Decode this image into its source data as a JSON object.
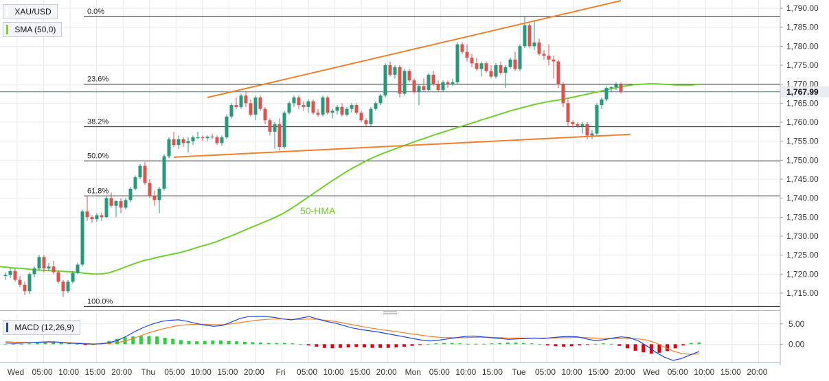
{
  "legend": {
    "symbol": "XAU/USD",
    "sma_label": "SMA (50,0)",
    "macd_label": "MACD (12,26,9)",
    "sma_color": "#7ed321",
    "macd_color": "#1b3fd8"
  },
  "colors": {
    "up": "#26997b",
    "down": "#d9534f",
    "sma": "#6ed02b",
    "macd_line": "#1f45e0",
    "signal_line": "#f07f2a",
    "hist_pos": "#2ecc40",
    "hist_neg": "#e3000f",
    "trendline": "#f07f2a",
    "price_line": "#4a6fa5",
    "price_tag_bg": "#e9edf3"
  },
  "hma_label": "50-HMA",
  "current_price": "1,767.99",
  "chart_data": [
    {
      "type": "candlestick",
      "x_axis_labels": [
        "Wed",
        "05:00",
        "10:00",
        "15:00",
        "20:00",
        "Thu",
        "05:00",
        "10:00",
        "15:00",
        "20:00",
        "Fri",
        "05:00",
        "10:00",
        "15:00",
        "20:00",
        "Mon",
        "05:00",
        "10:00",
        "15:00",
        "Tue",
        "05:00",
        "10:00",
        "15:00",
        "20:00",
        "Wed",
        "05:00",
        "10:00",
        "15:00",
        "20:00"
      ],
      "y_ticks": [
        "1,790.00",
        "1,785.00",
        "1,780.00",
        "1,775.00",
        "1,770.00",
        "1,765.00",
        "1,760.00",
        "1,755.00",
        "1,750.00",
        "1,745.00",
        "1,740.00",
        "1,735.00",
        "1,730.00",
        "1,725.00",
        "1,720.00",
        "1,715.00"
      ],
      "ylim": [
        1711,
        1792
      ],
      "ohlc": [
        [
          1719.5,
          1720.5,
          1718.5,
          1719.8
        ],
        [
          1719.8,
          1721.5,
          1719.0,
          1720.8
        ],
        [
          1720.8,
          1721.5,
          1718.0,
          1718.5
        ],
        [
          1718.5,
          1719.5,
          1716.5,
          1717.2
        ],
        [
          1717.2,
          1718.0,
          1714.5,
          1715.5
        ],
        [
          1715.5,
          1720.5,
          1714.8,
          1720.0
        ],
        [
          1720.0,
          1722.0,
          1719.2,
          1721.5
        ],
        [
          1721.5,
          1725.0,
          1721.0,
          1724.5
        ],
        [
          1724.5,
          1725.0,
          1720.5,
          1721.5
        ],
        [
          1721.5,
          1723.0,
          1720.8,
          1722.0
        ],
        [
          1722.0,
          1723.5,
          1720.0,
          1720.5
        ],
        [
          1720.5,
          1721.0,
          1717.5,
          1718.0
        ],
        [
          1718.0,
          1718.5,
          1714.0,
          1715.5
        ],
        [
          1715.5,
          1718.5,
          1715.0,
          1718.0
        ],
        [
          1718.0,
          1720.8,
          1717.5,
          1720.3
        ],
        [
          1720.3,
          1723.0,
          1720.0,
          1722.5
        ],
        [
          1722.5,
          1737.0,
          1722.0,
          1736.5
        ],
        [
          1736.5,
          1740.5,
          1734.0,
          1735.0
        ],
        [
          1735.0,
          1735.5,
          1733.5,
          1734.5
        ],
        [
          1734.5,
          1736.0,
          1733.8,
          1735.5
        ],
        [
          1735.5,
          1736.2,
          1734.0,
          1735.0
        ],
        [
          1735.0,
          1740.5,
          1734.8,
          1740.0
        ],
        [
          1740.0,
          1741.5,
          1737.5,
          1738.0
        ],
        [
          1738.0,
          1739.5,
          1735.0,
          1739.2
        ],
        [
          1739.2,
          1740.0,
          1736.0,
          1737.5
        ],
        [
          1737.5,
          1740.0,
          1737.0,
          1739.5
        ],
        [
          1739.5,
          1743.0,
          1739.0,
          1742.5
        ],
        [
          1742.5,
          1746.0,
          1742.0,
          1745.5
        ],
        [
          1745.5,
          1749.0,
          1745.0,
          1748.5
        ],
        [
          1748.5,
          1749.5,
          1743.5,
          1744.0
        ],
        [
          1744.0,
          1745.0,
          1740.0,
          1740.5
        ],
        [
          1740.5,
          1742.0,
          1738.0,
          1739.5
        ],
        [
          1739.5,
          1743.0,
          1736.0,
          1742.5
        ],
        [
          1742.5,
          1751.5,
          1742.0,
          1751.0
        ],
        [
          1751.0,
          1756.0,
          1750.5,
          1755.5
        ],
        [
          1755.5,
          1757.5,
          1753.5,
          1754.0
        ],
        [
          1754.0,
          1756.5,
          1753.0,
          1755.5
        ],
        [
          1755.5,
          1756.0,
          1753.5,
          1754.5
        ],
        [
          1754.5,
          1756.0,
          1752.0,
          1755.0
        ],
        [
          1755.0,
          1756.5,
          1754.0,
          1756.0
        ],
        [
          1756.0,
          1757.5,
          1755.5,
          1756.0
        ],
        [
          1756.0,
          1756.5,
          1755.0,
          1755.8
        ],
        [
          1755.8,
          1756.5,
          1755.0,
          1756.2
        ],
        [
          1756.2,
          1757.0,
          1755.5,
          1756.0
        ],
        [
          1756.0,
          1756.5,
          1754.0,
          1754.5
        ],
        [
          1754.5,
          1756.5,
          1753.8,
          1756.0
        ],
        [
          1756.0,
          1762.0,
          1755.5,
          1761.5
        ],
        [
          1761.5,
          1765.0,
          1761.0,
          1764.5
        ],
        [
          1764.5,
          1766.5,
          1763.5,
          1764.0
        ],
        [
          1764.0,
          1767.5,
          1763.5,
          1767.0
        ],
        [
          1767.0,
          1768.0,
          1764.0,
          1765.0
        ],
        [
          1765.0,
          1766.0,
          1761.5,
          1762.0
        ],
        [
          1762.0,
          1767.0,
          1760.5,
          1766.5
        ],
        [
          1766.5,
          1767.0,
          1763.0,
          1763.5
        ],
        [
          1763.5,
          1764.0,
          1759.5,
          1760.5
        ],
        [
          1760.5,
          1761.0,
          1756.5,
          1757.5
        ],
        [
          1757.5,
          1760.0,
          1753.0,
          1759.5
        ],
        [
          1759.5,
          1761.0,
          1752.5,
          1753.5
        ],
        [
          1753.5,
          1763.0,
          1753.0,
          1762.5
        ],
        [
          1762.5,
          1765.5,
          1762.0,
          1765.0
        ],
        [
          1765.0,
          1767.0,
          1764.0,
          1766.5
        ],
        [
          1766.5,
          1767.0,
          1763.5,
          1764.5
        ],
        [
          1764.5,
          1765.5,
          1763.0,
          1764.0
        ],
        [
          1764.0,
          1766.0,
          1762.5,
          1765.5
        ],
        [
          1765.5,
          1766.0,
          1762.0,
          1762.5
        ],
        [
          1762.5,
          1763.5,
          1761.5,
          1762.0
        ],
        [
          1762.0,
          1767.0,
          1761.5,
          1766.5
        ],
        [
          1766.5,
          1767.0,
          1762.0,
          1762.5
        ],
        [
          1762.5,
          1763.5,
          1761.0,
          1763.0
        ],
        [
          1763.0,
          1764.5,
          1762.0,
          1764.0
        ],
        [
          1764.0,
          1765.0,
          1761.5,
          1762.0
        ],
        [
          1762.0,
          1764.0,
          1761.5,
          1763.5
        ],
        [
          1763.5,
          1765.0,
          1762.5,
          1764.5
        ],
        [
          1764.5,
          1765.0,
          1762.0,
          1762.5
        ],
        [
          1762.5,
          1763.0,
          1760.0,
          1760.5
        ],
        [
          1760.5,
          1761.0,
          1759.0,
          1759.5
        ],
        [
          1759.5,
          1764.0,
          1759.0,
          1763.5
        ],
        [
          1763.5,
          1765.5,
          1763.0,
          1765.0
        ],
        [
          1765.0,
          1767.5,
          1764.5,
          1767.0
        ],
        [
          1767.0,
          1775.5,
          1766.5,
          1775.0
        ],
        [
          1775.0,
          1776.0,
          1772.0,
          1772.5
        ],
        [
          1772.5,
          1775.0,
          1771.5,
          1774.5
        ],
        [
          1774.5,
          1775.0,
          1766.5,
          1767.5
        ],
        [
          1767.5,
          1774.0,
          1767.0,
          1773.5
        ],
        [
          1773.5,
          1774.0,
          1770.5,
          1771.0
        ],
        [
          1771.0,
          1771.5,
          1767.5,
          1768.0
        ],
        [
          1768.0,
          1770.0,
          1764.5,
          1769.5
        ],
        [
          1769.5,
          1771.5,
          1768.0,
          1768.5
        ],
        [
          1768.5,
          1773.0,
          1768.0,
          1772.5
        ],
        [
          1772.5,
          1773.5,
          1769.5,
          1770.0
        ],
        [
          1770.0,
          1771.0,
          1768.0,
          1768.5
        ],
        [
          1768.5,
          1771.0,
          1768.0,
          1770.5
        ],
        [
          1770.5,
          1771.0,
          1769.0,
          1770.0
        ],
        [
          1770.0,
          1771.5,
          1769.5,
          1770.5
        ],
        [
          1770.5,
          1781.0,
          1770.0,
          1780.5
        ],
        [
          1780.5,
          1781.0,
          1778.0,
          1778.5
        ],
        [
          1778.5,
          1780.5,
          1776.0,
          1777.0
        ],
        [
          1777.0,
          1778.0,
          1774.5,
          1775.5
        ],
        [
          1775.5,
          1777.0,
          1773.5,
          1774.0
        ],
        [
          1774.0,
          1776.0,
          1772.0,
          1775.5
        ],
        [
          1775.5,
          1776.0,
          1773.0,
          1773.5
        ],
        [
          1773.5,
          1775.0,
          1771.5,
          1772.0
        ],
        [
          1772.0,
          1775.5,
          1771.5,
          1775.0
        ],
        [
          1775.0,
          1776.0,
          1772.5,
          1773.0
        ],
        [
          1773.0,
          1775.0,
          1769.0,
          1774.5
        ],
        [
          1774.5,
          1777.0,
          1774.0,
          1776.5
        ],
        [
          1776.5,
          1778.5,
          1773.5,
          1774.0
        ],
        [
          1774.0,
          1780.5,
          1773.5,
          1780.0
        ],
        [
          1780.0,
          1788.0,
          1779.5,
          1785.5
        ],
        [
          1785.5,
          1786.0,
          1779.5,
          1780.0
        ],
        [
          1780.0,
          1786.5,
          1779.0,
          1781.0
        ],
        [
          1781.0,
          1782.0,
          1777.5,
          1778.0
        ],
        [
          1778.0,
          1779.0,
          1776.5,
          1777.5
        ],
        [
          1777.5,
          1780.5,
          1775.0,
          1776.5
        ],
        [
          1776.5,
          1777.5,
          1771.5,
          1776.0
        ],
        [
          1776.0,
          1776.5,
          1769.0,
          1770.0
        ],
        [
          1770.0,
          1770.5,
          1764.0,
          1765.0
        ],
        [
          1765.0,
          1766.0,
          1759.0,
          1760.0
        ],
        [
          1760.0,
          1760.5,
          1758.5,
          1759.5
        ],
        [
          1759.5,
          1760.0,
          1758.5,
          1759.0
        ],
        [
          1759.0,
          1760.0,
          1757.0,
          1759.5
        ],
        [
          1759.5,
          1760.0,
          1755.5,
          1756.5
        ],
        [
          1756.5,
          1758.0,
          1755.5,
          1757.0
        ],
        [
          1757.0,
          1765.0,
          1756.5,
          1764.5
        ],
        [
          1764.5,
          1766.5,
          1763.5,
          1766.0
        ],
        [
          1766.0,
          1769.5,
          1765.5,
          1769.0
        ],
        [
          1769.0,
          1769.5,
          1768.0,
          1769.2
        ],
        [
          1769.2,
          1770.5,
          1768.5,
          1770.0
        ],
        [
          1770.0,
          1770.5,
          1767.5,
          1768.0
        ]
      ],
      "sma_50": [
        1722.0,
        1721.8,
        1721.6,
        1721.5,
        1721.3,
        1721.1,
        1721.0,
        1720.9,
        1720.8,
        1720.7,
        1720.6,
        1720.4,
        1720.2,
        1720.0,
        1720.0,
        1720.3,
        1720.9,
        1721.6,
        1722.3,
        1723.0,
        1723.6,
        1724.0,
        1724.5,
        1724.9,
        1725.3,
        1725.7,
        1726.2,
        1726.8,
        1727.4,
        1727.9,
        1728.5,
        1729.3,
        1730.0,
        1730.8,
        1731.6,
        1732.4,
        1733.2,
        1734.0,
        1734.8,
        1735.7,
        1736.8,
        1738.0,
        1739.3,
        1740.6,
        1741.9,
        1743.2,
        1744.5,
        1745.7,
        1746.9,
        1748.0,
        1749.0,
        1750.0,
        1750.9,
        1751.7,
        1752.4,
        1753.1,
        1753.8,
        1754.5,
        1755.2,
        1755.8,
        1756.5,
        1757.1,
        1757.7,
        1758.3,
        1758.9,
        1759.5,
        1760.1,
        1760.7,
        1761.3,
        1761.9,
        1762.5,
        1763.1,
        1763.6,
        1764.1,
        1764.6,
        1765.0,
        1765.4,
        1765.7,
        1766.0,
        1766.4,
        1766.8,
        1767.2,
        1767.6,
        1768.0,
        1768.5,
        1768.9,
        1769.3,
        1769.6,
        1769.9,
        1770.0,
        1770.1,
        1770.1,
        1770.0,
        1769.9,
        1769.8,
        1769.8,
        1769.8,
        1770.0
      ],
      "fibonacci": [
        {
          "label": "0.0%",
          "value": 1787.8
        },
        {
          "label": "23.6%",
          "value": 1770.0
        },
        {
          "label": "38.2%",
          "value": 1758.8
        },
        {
          "label": "50.0%",
          "value": 1749.8
        },
        {
          "label": "61.8%",
          "value": 1740.6
        },
        {
          "label": "100.0%",
          "value": 1711.5
        }
      ],
      "trendlines": [
        {
          "from": [
            42,
            1766.5
          ],
          "to": [
            128,
            1792.0
          ]
        },
        {
          "from": [
            35,
            1750.8
          ],
          "to": [
            130,
            1756.8
          ]
        }
      ],
      "current_price": 1767.99
    },
    {
      "type": "macd",
      "params": "12,26,9",
      "y_ticks": [
        "5.00",
        "0.00"
      ],
      "ylim": [
        -4.5,
        7.5
      ],
      "macd": [
        0.3,
        0.2,
        0.3,
        0.4,
        0.5,
        0.6,
        0.5,
        0.3,
        0.2,
        0.1,
        0.0,
        0.1,
        0.4,
        1.0,
        2.0,
        3.2,
        4.2,
        5.0,
        5.6,
        5.9,
        6.0,
        5.6,
        5.1,
        4.7,
        4.4,
        4.6,
        5.4,
        6.3,
        6.8,
        6.9,
        6.8,
        6.6,
        6.2,
        6.0,
        6.4,
        6.8,
        6.2,
        5.6,
        5.2,
        4.6,
        4.0,
        3.6,
        3.3,
        3.0,
        2.6,
        2.2,
        1.8,
        1.4,
        1.0,
        0.8,
        1.0,
        1.3,
        1.6,
        1.9,
        2.0,
        1.8,
        1.6,
        1.4,
        1.2,
        1.3,
        1.4,
        1.5,
        1.4,
        1.6,
        1.8,
        1.9,
        1.8,
        1.3,
        0.9,
        1.1,
        1.5,
        1.8,
        1.6,
        0.8,
        -0.5,
        -2.0,
        -3.2,
        -4.0,
        -3.5,
        -2.6,
        -1.8
      ],
      "signal": [
        0.6,
        0.5,
        0.4,
        0.4,
        0.4,
        0.5,
        0.5,
        0.4,
        0.3,
        0.2,
        0.1,
        0.1,
        0.2,
        0.4,
        0.9,
        1.6,
        2.4,
        3.1,
        3.7,
        4.2,
        4.6,
        4.8,
        4.9,
        4.9,
        4.8,
        4.8,
        5.0,
        5.3,
        5.6,
        5.9,
        6.1,
        6.2,
        6.2,
        6.1,
        6.1,
        6.2,
        6.1,
        5.9,
        5.6,
        5.2,
        4.8,
        4.4,
        4.0,
        3.7,
        3.4,
        3.1,
        2.8,
        2.5,
        2.2,
        1.9,
        1.7,
        1.6,
        1.6,
        1.6,
        1.7,
        1.7,
        1.7,
        1.6,
        1.5,
        1.5,
        1.5,
        1.5,
        1.5,
        1.5,
        1.6,
        1.6,
        1.7,
        1.6,
        1.5,
        1.4,
        1.4,
        1.4,
        1.4,
        1.3,
        1.0,
        0.3,
        -0.7,
        -1.7,
        -2.3,
        -2.5,
        -2.4
      ],
      "histogram": [
        0.0,
        0.05,
        0.1,
        0.2,
        0.3,
        0.5,
        0.7,
        0.5,
        0.3,
        0.1,
        -0.2,
        0.0,
        0.3,
        0.8,
        1.3,
        1.7,
        1.9,
        2.0,
        2.0,
        1.9,
        1.6,
        1.3,
        1.0,
        0.8,
        0.7,
        0.8,
        0.9,
        0.9,
        0.8,
        0.7,
        0.6,
        0.5,
        0.4,
        0.3,
        0.3,
        0.3,
        0.2,
        0.0,
        -0.3,
        -0.6,
        -0.9,
        -1.0,
        -0.9,
        -0.8,
        -0.7,
        -0.8,
        -0.9,
        -0.9,
        -0.9,
        -0.8,
        -0.6,
        -0.4,
        -0.2,
        0.0,
        0.2,
        0.3,
        0.3,
        0.2,
        0.1,
        0.1,
        0.1,
        0.2,
        0.3,
        0.4,
        0.4,
        0.3,
        0.2,
        0.0,
        -0.3,
        -0.5,
        -0.6,
        -0.5,
        -0.3,
        -0.1,
        0.1,
        0.2,
        0.1,
        -0.4,
        -1.0,
        -1.6,
        -2.0,
        -2.3,
        -2.1,
        -1.7,
        -1.0,
        -0.3,
        0.3,
        0.4
      ]
    }
  ]
}
